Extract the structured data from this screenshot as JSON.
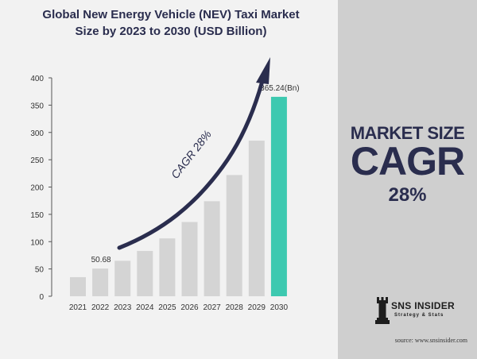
{
  "chart_data": {
    "type": "bar",
    "title": "Global New Energy Vehicle (NEV) Taxi Market Size by 2023 to 2030 (USD Billion)",
    "title_line1": "Global New Energy Vehicle (NEV) Taxi Market",
    "title_line2": "Size by 2023 to 2030 (USD Billion)",
    "categories": [
      "2021",
      "2022",
      "2023",
      "2024",
      "2025",
      "2026",
      "2027",
      "2028",
      "2029",
      "2030"
    ],
    "values": [
      35,
      50.68,
      65,
      83,
      106,
      136,
      174,
      222,
      285,
      365.24
    ],
    "ylim": [
      0,
      400
    ],
    "yticks": [
      "0",
      "50",
      "100",
      "150",
      "200",
      "250",
      "300",
      "350",
      "400"
    ],
    "data_labels": [
      {
        "index": 1,
        "text": "50.68"
      },
      {
        "index": 9,
        "text": "365.24(Bn)"
      }
    ],
    "annotation": "CAGR 28%",
    "colors": {
      "bar": "#d4d4d4",
      "highlight": "#3dc9b0",
      "arrow": "#2a2d4e",
      "text": "#2a2d4e"
    }
  },
  "side_panel": {
    "market_size": "MARKET SIZE",
    "cagr": "CAGR",
    "cagr_value": "28%"
  },
  "logo": {
    "name": "SNS INSIDER",
    "tagline": "Strategy & Stats",
    "icon": "chess-rook-icon"
  },
  "source": "source: www.snsinsider.com"
}
